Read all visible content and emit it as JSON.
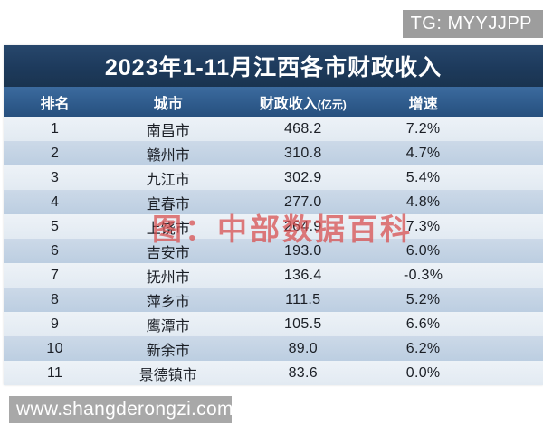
{
  "overlays": {
    "tg_label": "TG: MYYJJPP",
    "center_watermark": "图：中部数据百科",
    "bottom_watermark": "www.shangderongzi.com"
  },
  "table": {
    "title": "2023年1-11月江西各市财政收入",
    "headers": {
      "rank": "排名",
      "city": "城市",
      "revenue": "财政收入",
      "revenue_unit": "(亿元)",
      "growth": "增速"
    },
    "rows": [
      {
        "rank": "1",
        "city": "南昌市",
        "revenue": "468.2",
        "growth": "7.2%"
      },
      {
        "rank": "2",
        "city": "赣州市",
        "revenue": "310.8",
        "growth": "4.7%"
      },
      {
        "rank": "3",
        "city": "九江市",
        "revenue": "302.9",
        "growth": "5.4%"
      },
      {
        "rank": "4",
        "city": "宜春市",
        "revenue": "277.0",
        "growth": "4.8%"
      },
      {
        "rank": "5",
        "city": "上饶市",
        "revenue": "264.9",
        "growth": "7.3%"
      },
      {
        "rank": "6",
        "city": "吉安市",
        "revenue": "193.0",
        "growth": "6.0%"
      },
      {
        "rank": "7",
        "city": "抚州市",
        "revenue": "136.4",
        "growth": "-0.3%"
      },
      {
        "rank": "8",
        "city": "萍乡市",
        "revenue": "111.5",
        "growth": "5.2%"
      },
      {
        "rank": "9",
        "city": "鹰潭市",
        "revenue": "105.5",
        "growth": "6.6%"
      },
      {
        "rank": "10",
        "city": "新余市",
        "revenue": "89.0",
        "growth": "6.2%"
      },
      {
        "rank": "11",
        "city": "景德镇市",
        "revenue": "83.6",
        "growth": "0.0%"
      }
    ]
  },
  "colors": {
    "title_bar": "#1d3a5c",
    "header_bar": "#2e5a8b",
    "row_light": "#e7edf3",
    "row_dark": "#c2d3e4",
    "row_text": "#1b1f26",
    "watermark_red": "#d84b4b",
    "overlay_gray": "#a0a0a0"
  },
  "chart_data": {
    "type": "table",
    "title": "2023年1-11月江西各市财政收入",
    "columns": [
      "排名",
      "城市",
      "财政收入(亿元)",
      "增速"
    ],
    "rows": [
      [
        1,
        "南昌市",
        468.2,
        "7.2%"
      ],
      [
        2,
        "赣州市",
        310.8,
        "4.7%"
      ],
      [
        3,
        "九江市",
        302.9,
        "5.4%"
      ],
      [
        4,
        "宜春市",
        277.0,
        "4.8%"
      ],
      [
        5,
        "上饶市",
        264.9,
        "7.3%"
      ],
      [
        6,
        "吉安市",
        193.0,
        "6.0%"
      ],
      [
        7,
        "抚州市",
        136.4,
        "-0.3%"
      ],
      [
        8,
        "萍乡市",
        111.5,
        "5.2%"
      ],
      [
        9,
        "鹰潭市",
        105.5,
        "6.6%"
      ],
      [
        10,
        "新余市",
        89.0,
        "6.2%"
      ],
      [
        11,
        "景德镇市",
        83.6,
        "0.0%"
      ]
    ]
  }
}
